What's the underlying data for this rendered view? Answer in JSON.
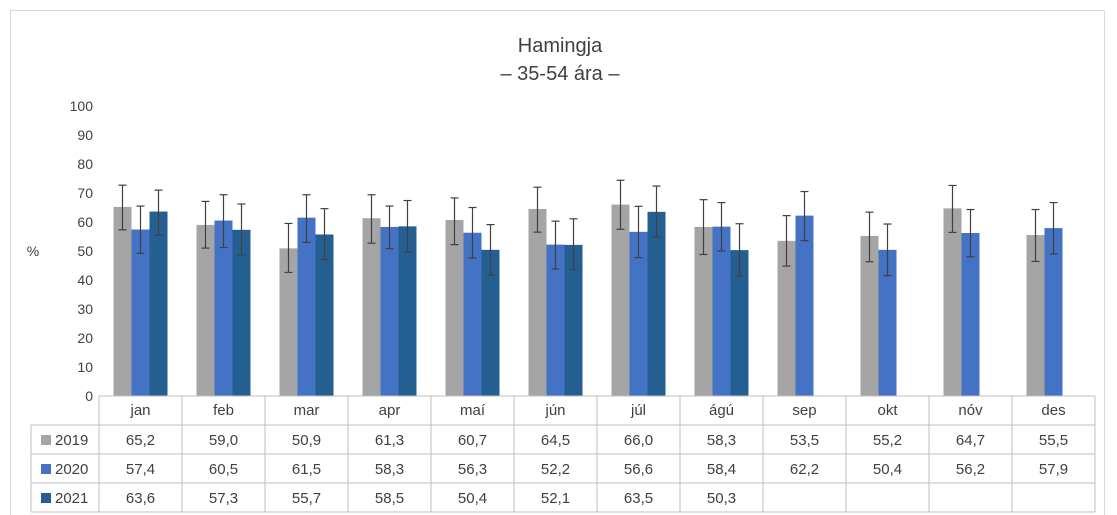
{
  "chart_data": {
    "type": "bar",
    "title": "Hamingja",
    "subtitle": "– 35-54 ára –",
    "ylabel": "%",
    "ylim": [
      0,
      100
    ],
    "yticks": [
      0,
      10,
      20,
      30,
      40,
      50,
      60,
      70,
      80,
      90,
      100
    ],
    "grid": false,
    "legend": "data-table",
    "categories": [
      "jan",
      "feb",
      "mar",
      "apr",
      "maí",
      "jún",
      "júl",
      "ágú",
      "sep",
      "okt",
      "nóv",
      "des"
    ],
    "series": [
      {
        "name": "2019",
        "color": "#a5a5a5",
        "values": [
          65.2,
          59.0,
          50.9,
          61.3,
          60.7,
          64.5,
          66.0,
          58.3,
          53.5,
          55.2,
          64.7,
          55.5
        ],
        "labels": [
          "65,2",
          "59,0",
          "50,9",
          "61,3",
          "60,7",
          "64,5",
          "66,0",
          "58,3",
          "53,5",
          "55,2",
          "64,7",
          "55,5"
        ],
        "error_low": [
          57.3,
          51.0,
          42.6,
          52.7,
          52.2,
          56.5,
          57.5,
          48.8,
          44.8,
          46.3,
          56.4,
          46.4
        ],
        "error_high": [
          72.7,
          67.1,
          59.5,
          69.4,
          68.3,
          72.0,
          74.4,
          67.7,
          62.2,
          63.4,
          72.6,
          64.3
        ]
      },
      {
        "name": "2020",
        "color": "#4472c4",
        "values": [
          57.4,
          60.5,
          61.5,
          58.3,
          56.3,
          52.2,
          56.6,
          58.4,
          62.2,
          50.4,
          56.2,
          57.9
        ],
        "labels": [
          "57,4",
          "60,5",
          "61,5",
          "58,3",
          "56,3",
          "52,2",
          "56,6",
          "58,4",
          "62,2",
          "50,4",
          "56,2",
          "57,9"
        ],
        "error_low": [
          49.2,
          51.2,
          53.0,
          50.8,
          47.6,
          43.8,
          47.7,
          50.0,
          53.6,
          41.5,
          48.0,
          49.0
        ],
        "error_high": [
          65.5,
          69.4,
          69.4,
          65.5,
          65.0,
          60.3,
          65.4,
          66.7,
          70.5,
          59.3,
          64.3,
          66.7
        ]
      },
      {
        "name": "2021",
        "color": "#255e91",
        "values": [
          63.6,
          57.3,
          55.7,
          58.5,
          50.4,
          52.1,
          63.5,
          50.3,
          null,
          null,
          null,
          null
        ],
        "labels": [
          "63,6",
          "57,3",
          "55,7",
          "58,5",
          "50,4",
          "52,1",
          "63,5",
          "50,3",
          "",
          "",
          "",
          ""
        ],
        "error_low": [
          55.4,
          48.6,
          47.0,
          49.7,
          41.7,
          43.6,
          54.9,
          41.4,
          null,
          null,
          null,
          null
        ],
        "error_high": [
          71.0,
          66.2,
          64.6,
          67.4,
          59.1,
          61.1,
          72.4,
          59.4,
          null,
          null,
          null,
          null
        ]
      }
    ]
  }
}
